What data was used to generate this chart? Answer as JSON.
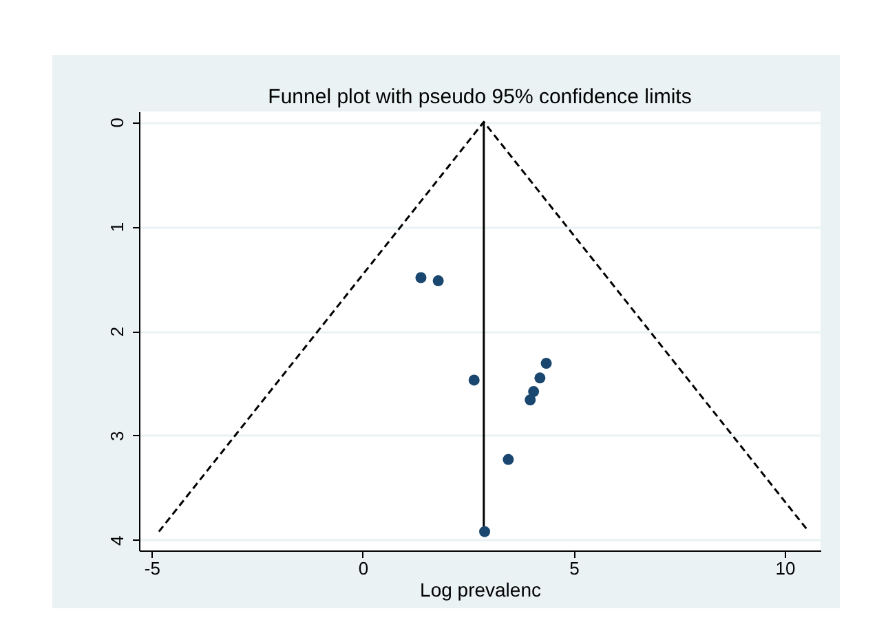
{
  "chart_data": {
    "type": "scatter",
    "title": "Funnel plot with pseudo 95% confidence limits",
    "xlabel": "Log prevalenc",
    "xlim": [
      -5.3,
      10.85
    ],
    "xticks": [
      -5,
      0,
      5,
      10
    ],
    "ylim": [
      4.1,
      -0.1
    ],
    "yticks": [
      0,
      1,
      2,
      3,
      4
    ],
    "grid": "y",
    "series": [
      {
        "type": "line",
        "color": "#000000",
        "line_style": "dashed",
        "x": [
          -4.83,
          2.87,
          10.57
        ],
        "values": [
          3.92,
          0,
          3.92
        ]
      },
      {
        "type": "line",
        "color": "#000000",
        "line_style": "solid",
        "x": [
          2.87,
          2.87
        ],
        "values": [
          0,
          3.92
        ]
      },
      {
        "type": "scatter",
        "color": "#1a476f",
        "marker": "circle",
        "x": [
          1.38,
          1.79,
          2.64,
          4.35,
          4.2,
          4.05,
          3.97,
          3.45,
          2.89
        ],
        "values": [
          1.49,
          1.52,
          2.47,
          2.31,
          2.45,
          2.58,
          2.66,
          3.23,
          3.92
        ]
      }
    ]
  }
}
